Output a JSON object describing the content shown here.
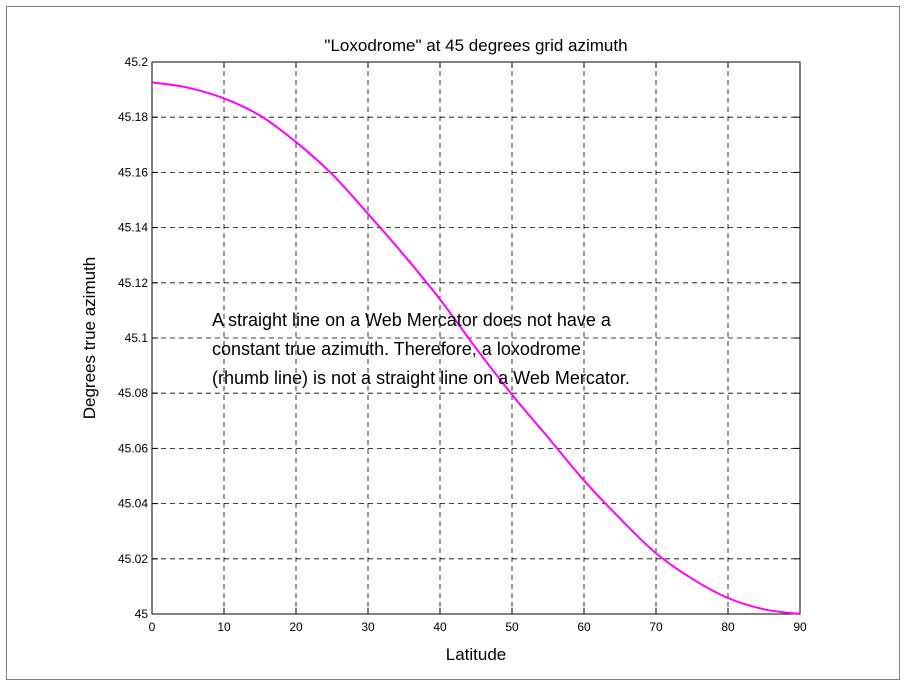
{
  "chart_data": {
    "type": "line",
    "title": "\"Loxodrome\" at 45 degrees grid azimuth",
    "xlabel": "Latitude",
    "ylabel": "Degrees true azimuth",
    "xlim": [
      0,
      90
    ],
    "ylim": [
      45,
      45.2
    ],
    "xticks": [
      0,
      10,
      20,
      30,
      40,
      50,
      60,
      70,
      80,
      90
    ],
    "xtick_labels": [
      "0",
      "10",
      "20",
      "30",
      "40",
      "50",
      "60",
      "70",
      "80",
      "90"
    ],
    "yticks": [
      45,
      45.02,
      45.04,
      45.06,
      45.08,
      45.1,
      45.12,
      45.14,
      45.16,
      45.18,
      45.2
    ],
    "ytick_labels": [
      "45",
      "45.02",
      "45.04",
      "45.06",
      "45.08",
      "45.1",
      "45.12",
      "45.14",
      "45.16",
      "45.18",
      "45.2"
    ],
    "grid": true,
    "line_color": "#ff00ff",
    "series": [
      {
        "x": [
          0,
          5,
          10,
          15,
          20,
          25,
          30,
          35,
          40,
          45,
          50,
          55,
          60,
          65,
          70,
          75,
          80,
          85,
          90
        ],
        "values": [
          45.1926,
          45.1907,
          45.1868,
          45.1806,
          45.171,
          45.1594,
          45.145,
          45.13,
          45.114,
          45.0963,
          45.0795,
          45.064,
          45.0484,
          45.0346,
          45.022,
          45.0128,
          45.0058,
          45.0017,
          45.0
        ]
      }
    ],
    "annotation": [
      "A straight line on a Web Mercator does not have a",
      "constant true azimuth.  Therefore, a loxodrome",
      "(rhumb line) is not a straight line on a Web Mercator."
    ]
  }
}
